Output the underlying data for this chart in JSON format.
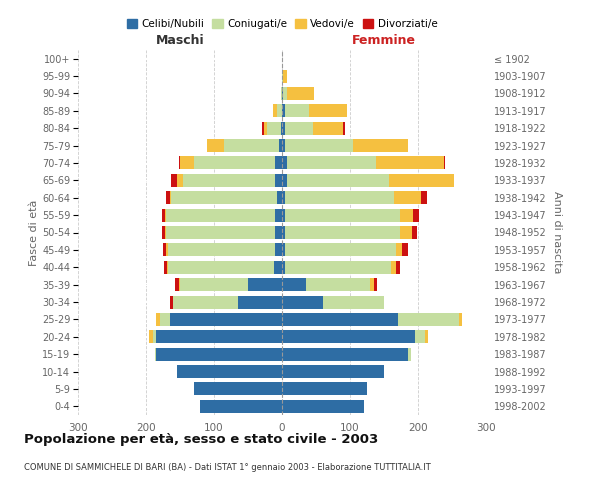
{
  "age_groups": [
    "0-4",
    "5-9",
    "10-14",
    "15-19",
    "20-24",
    "25-29",
    "30-34",
    "35-39",
    "40-44",
    "45-49",
    "50-54",
    "55-59",
    "60-64",
    "65-69",
    "70-74",
    "75-79",
    "80-84",
    "85-89",
    "90-94",
    "95-99",
    "100+"
  ],
  "birth_years": [
    "1998-2002",
    "1993-1997",
    "1988-1992",
    "1983-1987",
    "1978-1982",
    "1973-1977",
    "1968-1972",
    "1963-1967",
    "1958-1962",
    "1953-1957",
    "1948-1952",
    "1943-1947",
    "1938-1942",
    "1933-1937",
    "1928-1932",
    "1923-1927",
    "1918-1922",
    "1913-1917",
    "1908-1912",
    "1903-1907",
    "≤ 1902"
  ],
  "maschi": {
    "celibi": [
      120,
      130,
      155,
      185,
      185,
      165,
      65,
      50,
      12,
      10,
      10,
      10,
      8,
      10,
      10,
      5,
      2,
      0,
      0,
      0,
      0
    ],
    "coniugati": [
      0,
      0,
      0,
      2,
      5,
      15,
      95,
      100,
      155,
      158,
      160,
      160,
      155,
      135,
      120,
      80,
      20,
      8,
      2,
      0,
      0
    ],
    "vedovi": [
      0,
      0,
      0,
      0,
      5,
      5,
      0,
      2,
      2,
      2,
      2,
      2,
      2,
      10,
      20,
      25,
      5,
      5,
      0,
      0,
      0
    ],
    "divorziati": [
      0,
      0,
      0,
      0,
      0,
      0,
      5,
      5,
      5,
      5,
      5,
      5,
      5,
      8,
      2,
      0,
      2,
      0,
      0,
      0,
      0
    ]
  },
  "femmine": {
    "nubili": [
      120,
      125,
      150,
      185,
      195,
      170,
      60,
      35,
      5,
      5,
      5,
      5,
      5,
      8,
      8,
      5,
      5,
      5,
      2,
      0,
      0
    ],
    "coniugate": [
      0,
      0,
      0,
      5,
      15,
      90,
      90,
      95,
      155,
      162,
      168,
      168,
      160,
      150,
      130,
      100,
      40,
      35,
      5,
      2,
      0
    ],
    "vedove": [
      0,
      0,
      0,
      0,
      5,
      5,
      0,
      5,
      8,
      10,
      18,
      20,
      40,
      95,
      100,
      80,
      45,
      55,
      40,
      5,
      0
    ],
    "divorziate": [
      0,
      0,
      0,
      0,
      0,
      0,
      0,
      5,
      5,
      8,
      8,
      8,
      8,
      0,
      2,
      0,
      2,
      0,
      0,
      0,
      0
    ]
  },
  "colors": {
    "celibi": "#2e6da4",
    "coniugati": "#c5dea0",
    "vedovi": "#f5c040",
    "divorziati": "#cc1111"
  },
  "title": "Popolazione per età, sesso e stato civile - 2003",
  "subtitle": "COMUNE DI SAMMICHELE DI BARI (BA) - Dati ISTAT 1° gennaio 2003 - Elaborazione TUTTITALIA.IT",
  "xlabel_left": "Maschi",
  "xlabel_right": "Femmine",
  "ylabel_left": "Fasce di età",
  "ylabel_right": "Anni di nascita",
  "xlim": 300,
  "legend_labels": [
    "Celibi/Nubili",
    "Coniugati/e",
    "Vedovi/e",
    "Divorziati/e"
  ],
  "background_color": "#ffffff",
  "bar_height": 0.75
}
